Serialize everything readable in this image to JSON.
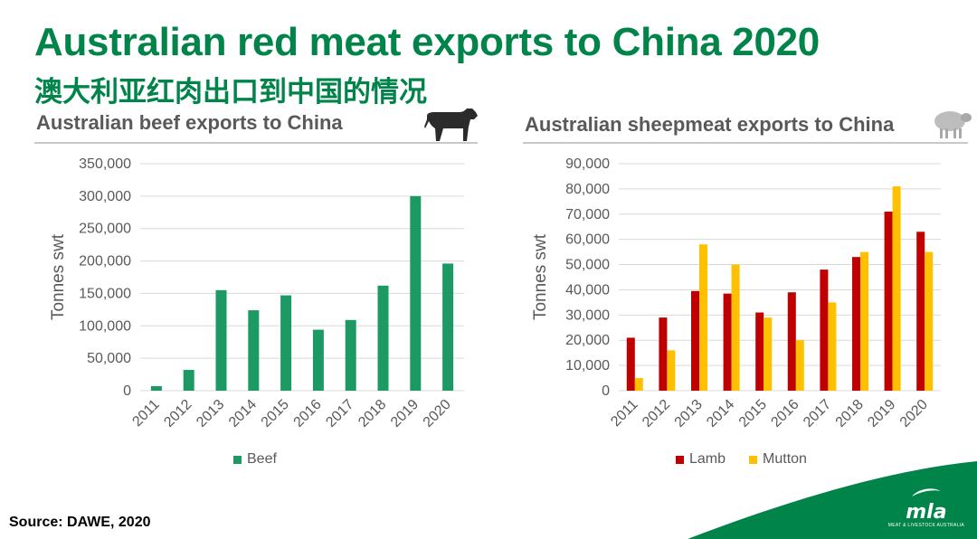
{
  "title": "Australian red meat exports to China 2020",
  "subtitle": "澳大利亚红肉出口到中国的情况",
  "source": "Source: DAWE, 2020",
  "logo": {
    "word": "mla",
    "tagline": "MEAT & LIVESTOCK AUSTRALIA"
  },
  "colors": {
    "brand_green": "#00844a",
    "beef": "#1d9a63",
    "lamb": "#c00000",
    "mutton": "#ffc000"
  },
  "icons": {
    "beef_panel": "cow-icon",
    "sheep_panel": "sheep-icon"
  },
  "chart_data": [
    {
      "type": "bar",
      "title": "Australian beef exports to China",
      "ylabel": "Tonnes swt",
      "xlabel": "",
      "categories": [
        "2011",
        "2012",
        "2013",
        "2014",
        "2015",
        "2016",
        "2017",
        "2018",
        "2019",
        "2020"
      ],
      "series": [
        {
          "name": "Beef",
          "color": "#1d9a63",
          "values": [
            7000,
            32000,
            155000,
            124000,
            147000,
            94000,
            109000,
            162000,
            300000,
            196000
          ]
        }
      ],
      "ylim": [
        0,
        350000
      ],
      "yticks": [
        0,
        50000,
        100000,
        150000,
        200000,
        250000,
        300000,
        350000
      ],
      "ytick_labels": [
        "0",
        "50,000",
        "100,000",
        "150,000",
        "200,000",
        "250,000",
        "300,000",
        "350,000"
      ],
      "grid": true,
      "legend": "bottom"
    },
    {
      "type": "bar",
      "title": "Australian sheepmeat exports to China",
      "ylabel": "Tonnes swt",
      "xlabel": "",
      "categories": [
        "2011",
        "2012",
        "2013",
        "2014",
        "2015",
        "2016",
        "2017",
        "2018",
        "2019",
        "2020"
      ],
      "series": [
        {
          "name": "Lamb",
          "color": "#c00000",
          "values": [
            21000,
            29000,
            39500,
            38500,
            31000,
            39000,
            48000,
            53000,
            71000,
            63000
          ]
        },
        {
          "name": "Mutton",
          "color": "#ffc000",
          "values": [
            5000,
            16000,
            58000,
            50000,
            29000,
            20000,
            35000,
            55000,
            81000,
            55000
          ]
        }
      ],
      "ylim": [
        0,
        90000
      ],
      "yticks": [
        0,
        10000,
        20000,
        30000,
        40000,
        50000,
        60000,
        70000,
        80000,
        90000
      ],
      "ytick_labels": [
        "0",
        "10,000",
        "20,000",
        "30,000",
        "40,000",
        "50,000",
        "60,000",
        "70,000",
        "80,000",
        "90,000"
      ],
      "grid": true,
      "legend": "bottom"
    }
  ]
}
